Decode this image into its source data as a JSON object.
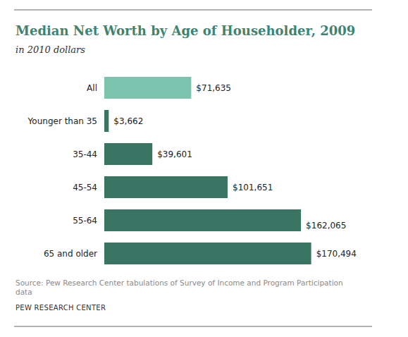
{
  "chart_data": {
    "type": "bar",
    "orientation": "horizontal",
    "title": "Median Net Worth by Age of Householder, 2009",
    "subtitle": "in 2010 dollars",
    "categories": [
      "All",
      "Younger than 35",
      "35-44",
      "45-54",
      "55-64",
      "65 and older"
    ],
    "values": [
      71635,
      3662,
      39601,
      101651,
      162065,
      170494
    ],
    "value_labels": [
      "$71,635",
      "$3,662",
      "$39,601",
      "$101,651",
      "$162,065",
      "$170,494"
    ],
    "colors": [
      "#7cc3ae",
      "#3a7563",
      "#3a7563",
      "#3a7563",
      "#3a7563",
      "#3a7563"
    ],
    "xlim": [
      0,
      180000
    ],
    "data_labels": true,
    "tick_labels": "y",
    "grid": false,
    "annotations": [
      "Source: Pew Research Center tabulations of Survey of Income and Program Participation data",
      "PEW RESEARCH CENTER"
    ]
  }
}
